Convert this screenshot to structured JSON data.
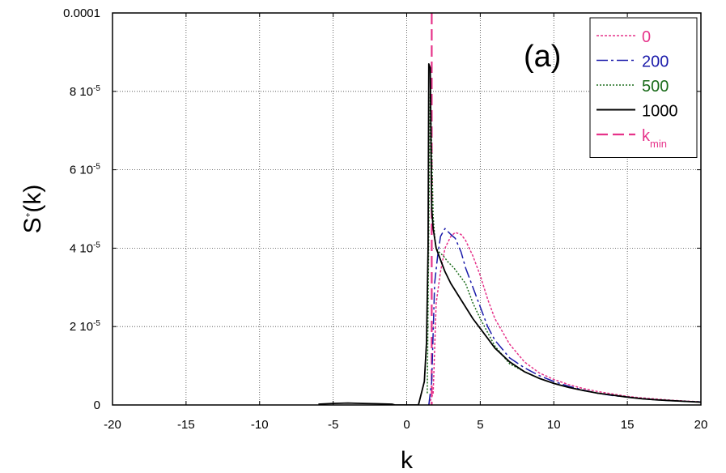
{
  "chart_data": {
    "type": "line",
    "panel_label": "(a)",
    "xlabel": "k",
    "ylabel": {
      "base": "S",
      "sup": "+",
      "tail": "(k)"
    },
    "xlim": [
      -20,
      20
    ],
    "ylim": [
      0,
      0.0001
    ],
    "x_ticks": [
      {
        "value": -20,
        "label": "-20"
      },
      {
        "value": -15,
        "label": "-15"
      },
      {
        "value": -10,
        "label": "-10"
      },
      {
        "value": -5,
        "label": "-5"
      },
      {
        "value": 0,
        "label": "0"
      },
      {
        "value": 5,
        "label": "5"
      },
      {
        "value": 10,
        "label": "10"
      },
      {
        "value": 15,
        "label": "15"
      },
      {
        "value": 20,
        "label": "20"
      }
    ],
    "y_ticks": [
      {
        "value": 0,
        "mantissa": "0",
        "exp": ""
      },
      {
        "value": 2e-05,
        "mantissa": "2 10",
        "exp": "-5"
      },
      {
        "value": 4e-05,
        "mantissa": "4 10",
        "exp": "-5"
      },
      {
        "value": 6e-05,
        "mantissa": "6 10",
        "exp": "-5"
      },
      {
        "value": 8e-05,
        "mantissa": "8 10",
        "exp": "-5"
      },
      {
        "value": 0.0001,
        "mantissa": "0.0001",
        "exp": ""
      }
    ],
    "grid": true,
    "legend_position": "top-right",
    "series": [
      {
        "name": "0",
        "color": "#e6338a",
        "dash": "3,2",
        "x": [
          1.5,
          1.8,
          2.0,
          2.3,
          2.6,
          3.0,
          3.3,
          3.7,
          4.0,
          4.5,
          5.0,
          5.5,
          6.0,
          7.0,
          8.0,
          9.0,
          10.0,
          11.0,
          12.0,
          13.0,
          14.0,
          15.0,
          16.0,
          17.0,
          18.0,
          19.0,
          20.0
        ],
        "y": [
          0,
          3e-06,
          2.6e-05,
          3.4e-05,
          4e-05,
          4.3e-05,
          4.4e-05,
          4.35e-05,
          4.2e-05,
          3.8e-05,
          3.3e-05,
          2.7e-05,
          2.2e-05,
          1.55e-05,
          1.1e-05,
          8.2e-06,
          6.5e-06,
          5.2e-06,
          4.2e-06,
          3.4e-06,
          2.8e-06,
          2.2e-06,
          1.8e-06,
          1.5e-06,
          1.2e-06,
          1e-06,
          8e-07
        ]
      },
      {
        "name": "200",
        "color": "#1a1aaa",
        "dash": "14,4,3,4",
        "x": [
          1.5,
          1.7,
          1.9,
          2.1,
          2.3,
          2.6,
          3.0,
          3.3,
          3.7,
          4.0,
          4.5,
          5.0,
          5.5,
          6.0,
          7.0,
          8.0,
          9.0,
          10.0,
          11.0,
          12.0,
          13.0,
          14.0,
          15.0,
          16.0,
          17.0,
          18.0,
          19.0,
          20.0
        ],
        "y": [
          0,
          6e-06,
          3.1e-05,
          3.8e-05,
          4.3e-05,
          4.5e-05,
          4.35e-05,
          4.25e-05,
          3.9e-05,
          3.5e-05,
          3e-05,
          2.5e-05,
          2e-05,
          1.65e-05,
          1.2e-05,
          9.5e-06,
          7.5e-06,
          6e-06,
          4.8e-06,
          3.8e-06,
          3e-06,
          2.4e-06,
          2e-06,
          1.6e-06,
          1.3e-06,
          1.1e-06,
          9e-07,
          8e-07
        ]
      },
      {
        "name": "500",
        "color": "#1a6b1a",
        "dash": "2,2",
        "x": [
          1.4,
          1.5,
          1.6,
          1.7,
          1.8,
          1.9,
          2.0,
          2.2,
          2.5,
          2.8,
          3.2,
          3.6,
          4.0,
          4.5,
          5.0,
          5.5,
          6.0,
          7.0,
          8.0,
          9.0,
          10.0,
          11.0,
          12.0,
          13.0,
          14.0,
          15.0,
          16.0,
          17.0,
          18.0,
          19.0,
          20.0
        ],
        "y": [
          3e-06,
          4.5e-05,
          8e-05,
          6.5e-05,
          4.8e-05,
          4.3e-05,
          4e-05,
          3.9e-05,
          3.8e-05,
          3.65e-05,
          3.5e-05,
          3.3e-05,
          3.1e-05,
          2.6e-05,
          2.2e-05,
          1.85e-05,
          1.5e-05,
          1.05e-05,
          8.5e-06,
          6.8e-06,
          5.5e-06,
          4.5e-06,
          3.7e-06,
          3e-06,
          2.5e-06,
          2e-06,
          1.6e-06,
          1.3e-06,
          1.1e-06,
          9e-07,
          8e-07
        ]
      },
      {
        "name": "1000",
        "color": "#000000",
        "dash": "",
        "x": [
          -6.0,
          -5.0,
          -4.0,
          -3.0,
          -2.0,
          -1.0,
          -0.8,
          0.8,
          1.2,
          1.35,
          1.45,
          1.5,
          1.6,
          1.7,
          1.8,
          2.0,
          2.3,
          2.6,
          3.0,
          3.5,
          4.0,
          4.5,
          5.0,
          5.5,
          6.0,
          7.0,
          8.0,
          9.0,
          10.0,
          11.0,
          12.0,
          13.0,
          14.0,
          15.0,
          16.0,
          17.0,
          18.0,
          19.0,
          20.0
        ],
        "y": [
          2e-07,
          4e-07,
          5e-07,
          4e-07,
          3e-07,
          2e-07,
          0,
          0,
          6e-06,
          1.6e-05,
          4e-05,
          8.7e-05,
          8.6e-05,
          5e-05,
          4.5e-05,
          4e-05,
          3.7e-05,
          3.4e-05,
          3.1e-05,
          2.8e-05,
          2.5e-05,
          2.2e-05,
          1.95e-05,
          1.7e-05,
          1.45e-05,
          1.1e-05,
          8.5e-06,
          6.8e-06,
          5.5e-06,
          4.5e-06,
          3.7e-06,
          3e-06,
          2.5e-06,
          2e-06,
          1.6e-06,
          1.3e-06,
          1.1e-06,
          9e-07,
          7e-07
        ]
      }
    ],
    "vline": {
      "name": "k",
      "name_sub": "min",
      "x": 1.7,
      "color": "#e6338a",
      "dash": "14,6"
    }
  }
}
